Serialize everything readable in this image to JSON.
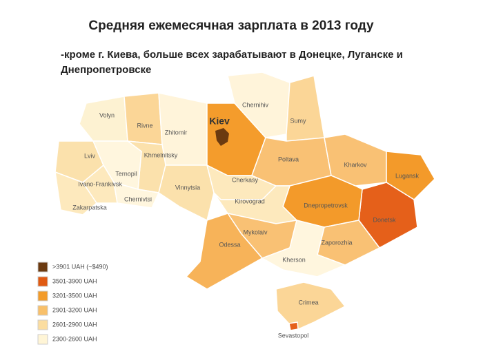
{
  "title": "Средняя ежемесячная зарплата в 2013 году",
  "subtitle": [
    "-кроме г. Киева, больше всех зарабатывают в Донецке, Луганске и",
    "Днепропетровске"
  ],
  "regions": [
    {
      "name": "Volyn",
      "color": "#fdf2d2"
    },
    {
      "name": "Rivne",
      "color": "#fbd697"
    },
    {
      "name": "Zhitomir",
      "color": "#fff4da"
    },
    {
      "name": "Kiev",
      "color": "#f49c2c"
    },
    {
      "name": "Chernihiv",
      "color": "#fff4da"
    },
    {
      "name": "Sumy",
      "color": "#fbd697"
    },
    {
      "name": "Lviv",
      "color": "#fbe1ac"
    },
    {
      "name": "Khmelnitsky",
      "color": "#fbe1ac"
    },
    {
      "name": "Ternopil",
      "color": "#fff6de"
    },
    {
      "name": "Ivano-Frankivsk",
      "color": "#fde9bd"
    },
    {
      "name": "Chernivtsi",
      "color": "#fff6de"
    },
    {
      "name": "Zakarpatska",
      "color": "#fde9bd"
    },
    {
      "name": "Vinnytsia",
      "color": "#fbe1ac"
    },
    {
      "name": "Cherkasy",
      "color": "#fde9bd"
    },
    {
      "name": "Poltava",
      "color": "#f9c174"
    },
    {
      "name": "Kharkov",
      "color": "#f9c174"
    },
    {
      "name": "Lugansk",
      "color": "#f39a2a"
    },
    {
      "name": "Donetsk",
      "color": "#e5601a"
    },
    {
      "name": "Dnepropetrovsk",
      "color": "#f39a2a"
    },
    {
      "name": "Kirovograd",
      "color": "#fde9bd"
    },
    {
      "name": "Zaporozhia",
      "color": "#f9c174"
    },
    {
      "name": "Mykolaiv",
      "color": "#f9c174"
    },
    {
      "name": "Odessa",
      "color": "#f7b359"
    },
    {
      "name": "Kherson",
      "color": "#fff6de"
    },
    {
      "name": "Crimea",
      "color": "#fbd697"
    },
    {
      "name": "Sevastopol",
      "color": "#e5601a"
    }
  ],
  "kiev_city": {
    "color": "#6b3a10"
  },
  "legend": [
    {
      "label": ">3901 UAH (~$490)",
      "color": "#6b3a10"
    },
    {
      "label": "3501-3900 UAH",
      "color": "#e05a12"
    },
    {
      "label": "3201-3500 UAH",
      "color": "#f29b2a"
    },
    {
      "label": "2901-3200 UAH",
      "color": "#f8c06a"
    },
    {
      "label": "2601-2900 UAH",
      "color": "#fbdda0"
    },
    {
      "label": "2300-2600 UAH",
      "color": "#fff5d6"
    }
  ]
}
